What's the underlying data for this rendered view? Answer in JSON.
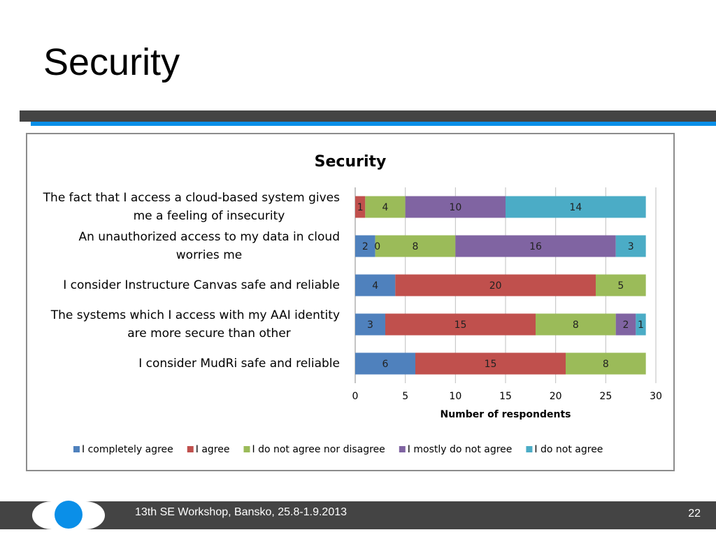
{
  "slide": {
    "title": "Security",
    "footer_text": "13th SE Workshop, Bansko, 25.8-1.9.2013",
    "page_number": "22"
  },
  "chart_data": {
    "type": "bar",
    "orientation": "horizontal",
    "stacked": true,
    "title": "Security",
    "xlabel": "Number of respondents",
    "xlim": [
      0,
      30
    ],
    "xticks": [
      0,
      5,
      10,
      15,
      20,
      25,
      30
    ],
    "grid": true,
    "legend_position": "bottom",
    "categories": [
      [
        "The fact that I access a cloud-based system gives",
        "me a feeling of insecurity"
      ],
      [
        "An unauthorized access to my data in cloud",
        "worries me"
      ],
      [
        "I consider Instructure Canvas safe and reliable"
      ],
      [
        "The systems which I access with my AAI identity",
        "are more secure than other"
      ],
      [
        "I consider MudRi safe and reliable"
      ]
    ],
    "series": [
      {
        "name": "I completely agree",
        "color": "#4f81bd",
        "values": [
          0,
          2,
          4,
          3,
          6
        ]
      },
      {
        "name": "I agree",
        "color": "#c0504d",
        "values": [
          1,
          0,
          20,
          15,
          15
        ]
      },
      {
        "name": "I do not agree nor disagree",
        "color": "#9bbb59",
        "values": [
          4,
          8,
          5,
          8,
          8
        ]
      },
      {
        "name": "I mostly do not agree",
        "color": "#8064a2",
        "values": [
          10,
          16,
          0,
          2,
          0
        ]
      },
      {
        "name": "I do not agree",
        "color": "#4bacc6",
        "values": [
          14,
          3,
          0,
          1,
          0
        ]
      }
    ]
  }
}
